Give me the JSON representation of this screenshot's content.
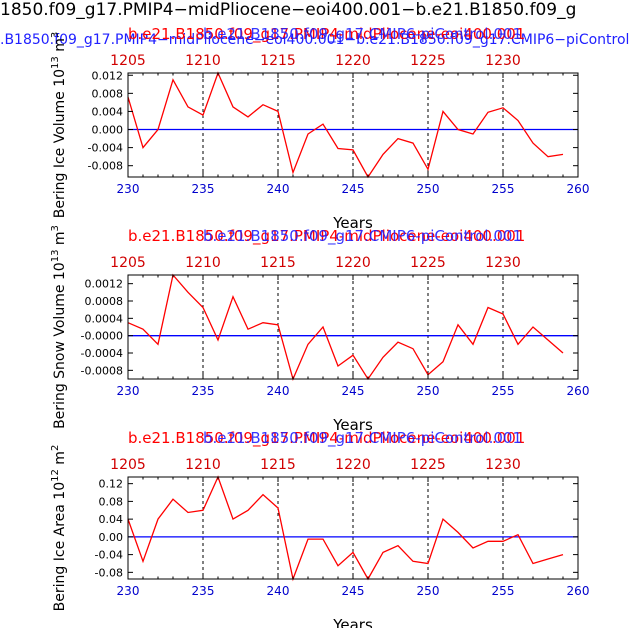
{
  "header": {
    "title": "1850.f09_g17.PMIP4−midPliocene−eoi400.001−b.e21.B1850.f09_g",
    "subtitle": ".B1850.f09_g17.PMIP4−midPliocene−eoi400.001−b.e21.B1850.f09_g17.CMIP6−piControl"
  },
  "colors": {
    "series": "#ff0000",
    "zero_line": "#0000ff",
    "bottom_ticks": "#0000cc",
    "top_ticks": "#d00000",
    "overlap_blue": "#2020ff"
  },
  "chart_data": [
    {
      "type": "line",
      "title_overlap": [
        "b.e21.B1850.f09_g17.PMIP4-midPliocene-eoi400.001",
        "b.e21.B1850.f09_g17.CMIP6-piControl.001"
      ],
      "xlabel": "Years",
      "ylabel": "Bering Ice Volume 10",
      "ylabel_exp": "13",
      "ylabel_unit": " m",
      "ylabel_unit_exp": "3",
      "xlim": [
        230,
        260
      ],
      "x_ticks": [
        230,
        235,
        240,
        245,
        250,
        255,
        260
      ],
      "top_ticks": [
        1205,
        1210,
        1215,
        1220,
        1225,
        1230
      ],
      "ylim": [
        -0.0105,
        0.0125
      ],
      "y_ticks": [
        0.012,
        0.008,
        0.004,
        0.0,
        -0.004,
        -0.008
      ],
      "y_tick_labels": [
        "0.012",
        "0.008",
        "0.004",
        "0.000",
        "-0.004",
        "-0.008"
      ],
      "vgrid": [
        235,
        240,
        245,
        250,
        255
      ],
      "x": [
        230,
        231,
        232,
        233,
        234,
        235,
        236,
        237,
        238,
        239,
        240,
        241,
        242,
        243,
        244,
        245,
        246,
        247,
        248,
        249,
        250,
        251,
        252,
        253,
        254,
        255,
        256,
        257,
        258,
        259
      ],
      "values": [
        0.0072,
        -0.004,
        0.0,
        0.011,
        0.005,
        0.0032,
        0.0125,
        0.005,
        0.0028,
        0.0055,
        0.004,
        -0.0095,
        -0.001,
        0.0012,
        -0.0042,
        -0.0045,
        -0.0105,
        -0.0055,
        -0.002,
        -0.003,
        -0.0088,
        0.004,
        0.0,
        -0.001,
        0.0038,
        0.0048,
        0.002,
        -0.003,
        -0.006,
        -0.0055
      ],
      "zero": 0
    },
    {
      "type": "line",
      "title_overlap": [
        "b.e21.B1850.f09_g17.PMIP4-midPliocene-eoi400.001",
        "b.e21.B1850.f09_g17.CMIP6-piControl.001"
      ],
      "xlabel": "Years",
      "ylabel": "Bering Snow Volume 10",
      "ylabel_exp": "13",
      "ylabel_unit": " m",
      "ylabel_unit_exp": "3",
      "xlim": [
        230,
        260
      ],
      "x_ticks": [
        230,
        235,
        240,
        245,
        250,
        255,
        260
      ],
      "top_ticks": [
        1205,
        1210,
        1215,
        1220,
        1225,
        1230
      ],
      "ylim": [
        -0.001,
        0.0014
      ],
      "y_ticks": [
        0.0012,
        0.0008,
        0.0004,
        0.0,
        -0.0004,
        -0.0008
      ],
      "y_tick_labels": [
        "0.0012",
        "0.0008",
        "0.0004",
        "-0.0000",
        "-0.0004",
        "-0.0008"
      ],
      "vgrid": [
        235,
        240,
        245,
        250,
        255
      ],
      "x": [
        230,
        231,
        232,
        233,
        234,
        235,
        236,
        237,
        238,
        239,
        240,
        241,
        242,
        243,
        244,
        245,
        246,
        247,
        248,
        249,
        250,
        251,
        252,
        253,
        254,
        255,
        256,
        257,
        258,
        259
      ],
      "values": [
        0.0003,
        0.00015,
        -0.0002,
        0.0014,
        0.001,
        0.00065,
        -0.0001,
        0.0009,
        0.00015,
        0.0003,
        0.00025,
        -0.001,
        -0.0002,
        0.0002,
        -0.0007,
        -0.00045,
        -0.001,
        -0.0005,
        -0.00015,
        -0.0003,
        -0.0009,
        -0.0006,
        0.00025,
        -0.0002,
        0.00065,
        0.0005,
        -0.0002,
        0.0002,
        -0.0001,
        -0.0004
      ],
      "zero": 0
    },
    {
      "type": "line",
      "title_overlap": [
        "b.e21.B1850.f09_g17.PMIP4-midPliocene-eoi400.001",
        "b.e21.B1850.f09_g17.CMIP6-piControl.001"
      ],
      "xlabel": "Years",
      "ylabel": "Bering Ice Area 10",
      "ylabel_exp": "12",
      "ylabel_unit": " m",
      "ylabel_unit_exp": "2",
      "xlim": [
        230,
        260
      ],
      "x_ticks": [
        230,
        235,
        240,
        245,
        250,
        255,
        260
      ],
      "top_ticks": [
        1205,
        1210,
        1215,
        1220,
        1225,
        1230
      ],
      "ylim": [
        -0.095,
        0.135
      ],
      "y_ticks": [
        0.12,
        0.08,
        0.04,
        0.0,
        -0.04,
        -0.08
      ],
      "y_tick_labels": [
        "0.12",
        "0.08",
        "0.04",
        "0.00",
        "-0.04",
        "-0.08"
      ],
      "vgrid": [
        235,
        240,
        245,
        250,
        255
      ],
      "x": [
        230,
        231,
        232,
        233,
        234,
        235,
        236,
        237,
        238,
        239,
        240,
        241,
        242,
        243,
        244,
        245,
        246,
        247,
        248,
        249,
        250,
        251,
        252,
        253,
        254,
        255,
        256,
        257,
        258,
        259
      ],
      "values": [
        0.04,
        -0.055,
        0.04,
        0.085,
        0.055,
        0.06,
        0.135,
        0.04,
        0.06,
        0.095,
        0.065,
        -0.095,
        -0.005,
        -0.005,
        -0.065,
        -0.035,
        -0.095,
        -0.035,
        -0.02,
        -0.055,
        -0.06,
        0.04,
        0.01,
        -0.025,
        -0.01,
        -0.01,
        0.005,
        -0.06,
        -0.05,
        -0.04
      ],
      "zero": 0
    }
  ]
}
